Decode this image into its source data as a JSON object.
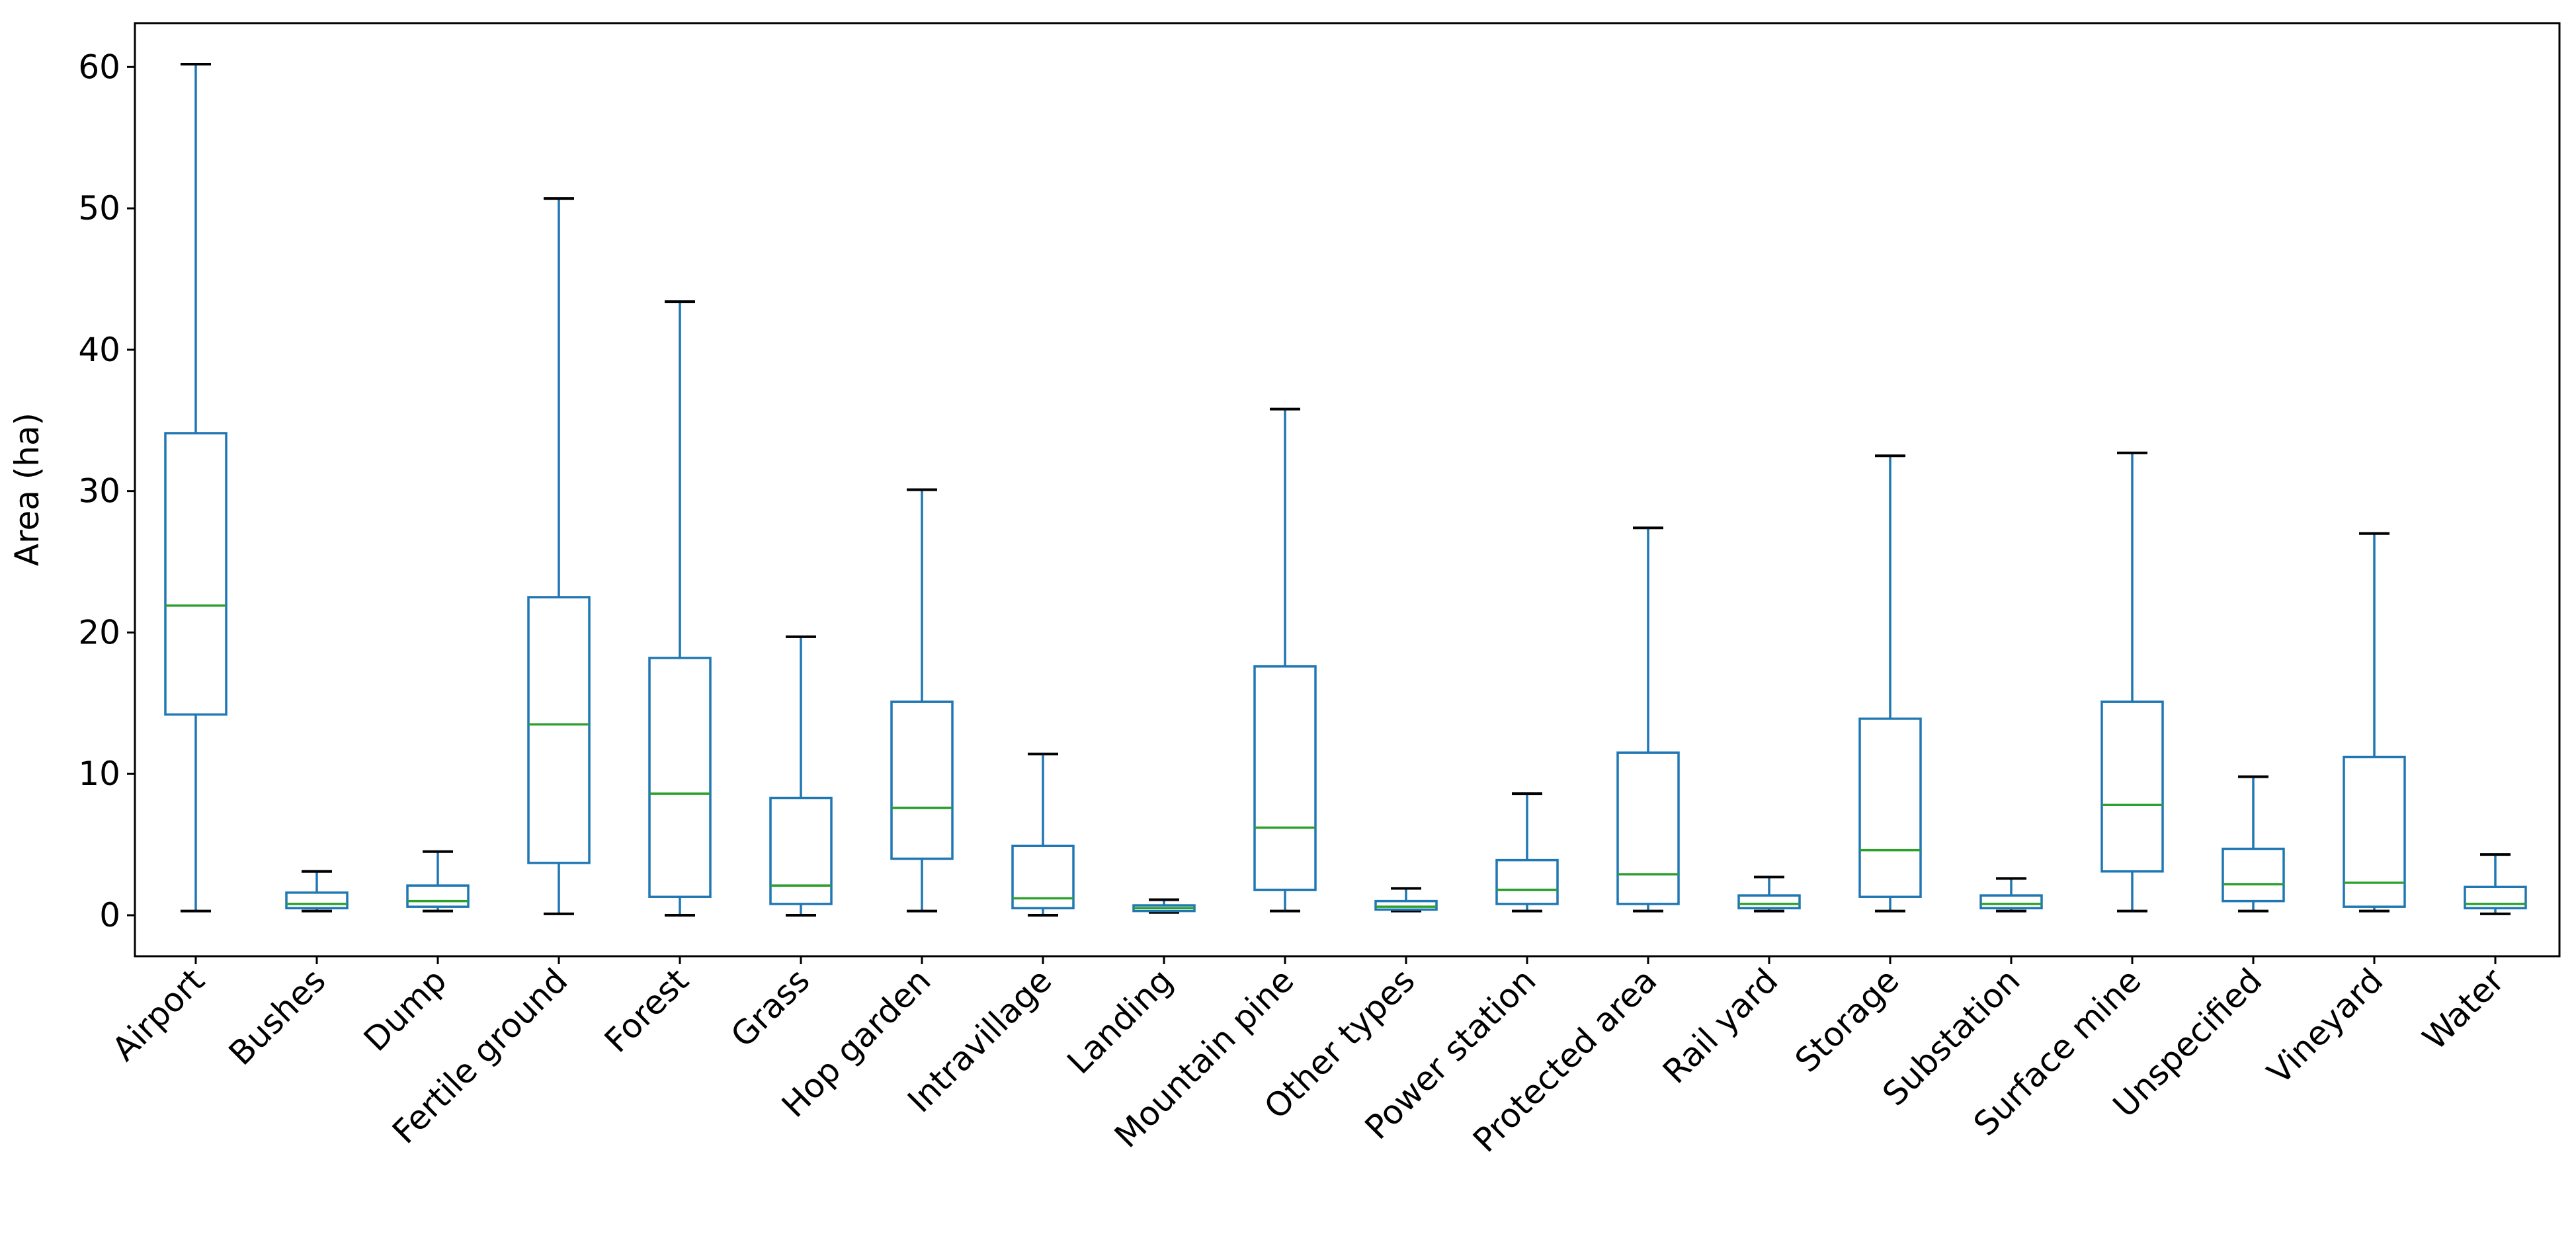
{
  "chart_data": {
    "type": "boxplot",
    "title": "",
    "xlabel": "",
    "ylabel": "Area (ha)",
    "ylim": [
      -2.9,
      63.1
    ],
    "yticks": [
      0,
      10,
      20,
      30,
      40,
      50,
      60
    ],
    "grid": false,
    "colors": {
      "box": "#1f77b4",
      "median": "#2ca02c",
      "cap": "#000000"
    },
    "categories": [
      "Airport",
      "Bushes",
      "Dump",
      "Fertile ground",
      "Forest",
      "Grass",
      "Hop garden",
      "Intravillage",
      "Landing",
      "Mountain pine",
      "Other types",
      "Power station",
      "Protected area",
      "Rail yard",
      "Storage",
      "Substation",
      "Surface mine",
      "Unspecified",
      "Vineyard",
      "Water"
    ],
    "boxes": [
      {
        "whislo": 0.3,
        "q1": 14.2,
        "med": 21.9,
        "q3": 34.1,
        "whishi": 60.2
      },
      {
        "whislo": 0.3,
        "q1": 0.5,
        "med": 0.8,
        "q3": 1.6,
        "whishi": 3.1
      },
      {
        "whislo": 0.3,
        "q1": 0.6,
        "med": 1.0,
        "q3": 2.1,
        "whishi": 4.5
      },
      {
        "whislo": 0.1,
        "q1": 3.7,
        "med": 13.5,
        "q3": 22.5,
        "whishi": 50.7
      },
      {
        "whislo": 0.0,
        "q1": 1.3,
        "med": 8.6,
        "q3": 18.2,
        "whishi": 43.4
      },
      {
        "whislo": 0.0,
        "q1": 0.8,
        "med": 2.1,
        "q3": 8.3,
        "whishi": 19.7
      },
      {
        "whislo": 0.3,
        "q1": 4.0,
        "med": 7.6,
        "q3": 15.1,
        "whishi": 30.1
      },
      {
        "whislo": 0.0,
        "q1": 0.5,
        "med": 1.2,
        "q3": 4.9,
        "whishi": 11.4
      },
      {
        "whislo": 0.2,
        "q1": 0.3,
        "med": 0.5,
        "q3": 0.7,
        "whishi": 1.1
      },
      {
        "whislo": 0.3,
        "q1": 1.8,
        "med": 6.2,
        "q3": 17.6,
        "whishi": 35.8
      },
      {
        "whislo": 0.3,
        "q1": 0.4,
        "med": 0.6,
        "q3": 1.0,
        "whishi": 1.9
      },
      {
        "whislo": 0.3,
        "q1": 0.8,
        "med": 1.8,
        "q3": 3.9,
        "whishi": 8.6
      },
      {
        "whislo": 0.3,
        "q1": 0.8,
        "med": 2.9,
        "q3": 11.5,
        "whishi": 27.4
      },
      {
        "whislo": 0.3,
        "q1": 0.5,
        "med": 0.8,
        "q3": 1.4,
        "whishi": 2.7
      },
      {
        "whislo": 0.3,
        "q1": 1.3,
        "med": 4.6,
        "q3": 13.9,
        "whishi": 32.5
      },
      {
        "whislo": 0.3,
        "q1": 0.5,
        "med": 0.8,
        "q3": 1.4,
        "whishi": 2.6
      },
      {
        "whislo": 0.3,
        "q1": 3.1,
        "med": 7.8,
        "q3": 15.1,
        "whishi": 32.7
      },
      {
        "whislo": 0.3,
        "q1": 1.0,
        "med": 2.2,
        "q3": 4.7,
        "whishi": 9.8
      },
      {
        "whislo": 0.3,
        "q1": 0.6,
        "med": 2.3,
        "q3": 11.2,
        "whishi": 27.0
      },
      {
        "whislo": 0.1,
        "q1": 0.5,
        "med": 0.8,
        "q3": 2.0,
        "whishi": 4.3
      }
    ]
  }
}
